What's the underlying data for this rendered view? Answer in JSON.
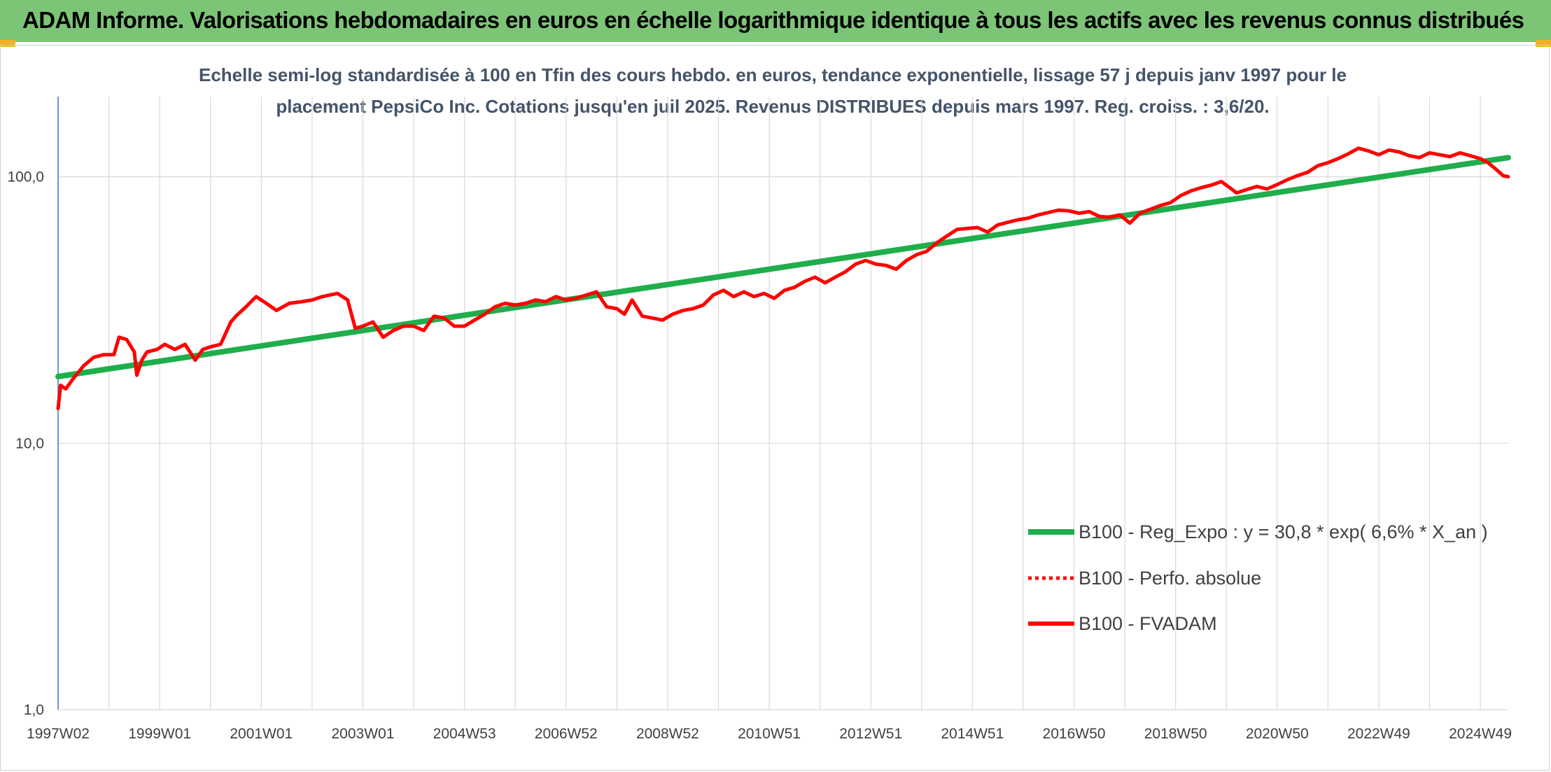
{
  "header": {
    "title": "ADAM Informe. Valorisations hebdomadaires en euros en échelle logarithmique identique à tous les actifs avec les revenus connus distribués",
    "accent_color": "#7cc576"
  },
  "chart_data": {
    "type": "line",
    "title": [
      "Echelle semi-log standardisée à 100 en Tfin des cours hebdo. en euros, tendance exponentielle, lissage 57 j depuis janv 1997 pour le",
      "placement PepsiCo Inc. Cotations jusqu'en juil 2025. Revenus DISTRIBUES depuis mars 1997. Reg. croiss. : 3,6/20."
    ],
    "y_scale": "log",
    "ylim": [
      1,
      200
    ],
    "y_ticks": [
      "1,0",
      "10,0",
      "100,0"
    ],
    "y_tick_values": [
      1,
      10,
      100
    ],
    "x_range": [
      1997.0,
      2025.55
    ],
    "x_ticks": [
      "1997W02",
      "1999W01",
      "2001W01",
      "2003W01",
      "2004W53",
      "2006W52",
      "2008W52",
      "2010W51",
      "2012W51",
      "2014W51",
      "2016W50",
      "2018W50",
      "2020W50",
      "2022W49",
      "2024W49"
    ],
    "x_tick_years": [
      1997.0,
      1999.0,
      2001.0,
      2003.0,
      2005.0,
      2007.0,
      2009.0,
      2011.0,
      2013.0,
      2015.0,
      2017.0,
      2019.0,
      2021.0,
      2023.0,
      2025.0
    ],
    "grid": true,
    "legend_position": "bottom-right",
    "series": [
      {
        "name": "B100 - Reg_Expo : y = 30,8 * exp( 6,6% *  X_an )",
        "color": "#1fae4b",
        "style": "solid",
        "x": [
          1997.0,
          2025.55
        ],
        "y": [
          17.8,
          118
        ]
      },
      {
        "name": "B100 - Perfo. absolue",
        "color": "#ff0000",
        "style": "dotted",
        "x": [],
        "y": []
      },
      {
        "name": "B100 - FVADAM",
        "color": "#ff0000",
        "style": "solid",
        "x": [
          1997.0,
          1997.05,
          1997.15,
          1997.3,
          1997.5,
          1997.7,
          1997.9,
          1998.1,
          1998.2,
          1998.35,
          1998.5,
          1998.55,
          1998.65,
          1998.75,
          1998.95,
          1999.1,
          1999.3,
          1999.5,
          1999.7,
          1999.85,
          2000.0,
          2000.2,
          2000.4,
          2000.5,
          2000.7,
          2000.9,
          2001.1,
          2001.3,
          2001.55,
          2001.8,
          2002.0,
          2002.2,
          2002.5,
          2002.7,
          2002.85,
          2003.0,
          2003.2,
          2003.4,
          2003.6,
          2003.8,
          2004.0,
          2004.2,
          2004.4,
          2004.6,
          2004.8,
          2005.0,
          2005.2,
          2005.4,
          2005.6,
          2005.8,
          2006.0,
          2006.2,
          2006.4,
          2006.6,
          2006.8,
          2007.0,
          2007.2,
          2007.4,
          2007.6,
          2007.8,
          2008.0,
          2008.15,
          2008.3,
          2008.5,
          2008.7,
          2008.9,
          2009.1,
          2009.3,
          2009.5,
          2009.7,
          2009.9,
          2010.1,
          2010.3,
          2010.5,
          2010.7,
          2010.9,
          2011.1,
          2011.3,
          2011.5,
          2011.7,
          2011.9,
          2012.1,
          2012.3,
          2012.5,
          2012.7,
          2012.9,
          2013.1,
          2013.3,
          2013.5,
          2013.7,
          2013.9,
          2014.1,
          2014.3,
          2014.5,
          2014.7,
          2014.9,
          2015.1,
          2015.3,
          2015.5,
          2015.7,
          2015.9,
          2016.1,
          2016.3,
          2016.5,
          2016.7,
          2016.9,
          2017.1,
          2017.3,
          2017.5,
          2017.7,
          2017.9,
          2018.1,
          2018.3,
          2018.5,
          2018.7,
          2018.9,
          2019.1,
          2019.3,
          2019.5,
          2019.7,
          2019.9,
          2020.1,
          2020.2,
          2020.4,
          2020.6,
          2020.8,
          2021.0,
          2021.2,
          2021.4,
          2021.6,
          2021.8,
          2022.0,
          2022.2,
          2022.4,
          2022.6,
          2022.8,
          2023.0,
          2023.2,
          2023.4,
          2023.6,
          2023.8,
          2024.0,
          2024.2,
          2024.4,
          2024.6,
          2024.8,
          2025.0,
          2025.15,
          2025.3,
          2025.45,
          2025.55
        ],
        "y": [
          13.5,
          16.5,
          16.0,
          17.5,
          19.5,
          21.0,
          21.5,
          21.5,
          25.0,
          24.5,
          22.0,
          18.0,
          20.5,
          22.0,
          22.5,
          23.5,
          22.5,
          23.5,
          20.5,
          22.5,
          23.0,
          23.5,
          28.5,
          30.0,
          32.5,
          35.5,
          33.5,
          31.5,
          33.5,
          34.0,
          34.5,
          35.5,
          36.5,
          34.5,
          27.0,
          27.5,
          28.5,
          25.0,
          26.5,
          27.5,
          27.5,
          26.5,
          30.0,
          29.5,
          27.5,
          27.5,
          29.0,
          30.5,
          32.5,
          33.5,
          33.0,
          33.5,
          34.5,
          34.0,
          35.5,
          34.5,
          35.0,
          36.0,
          37.0,
          32.5,
          32.0,
          30.5,
          34.5,
          30.0,
          29.5,
          29.0,
          30.5,
          31.5,
          32.0,
          33.0,
          36.0,
          37.5,
          35.5,
          37.0,
          35.5,
          36.5,
          35.0,
          37.5,
          38.5,
          40.5,
          42.0,
          40.0,
          42.0,
          44.0,
          47.0,
          48.5,
          47.0,
          46.5,
          45.0,
          48.5,
          51.0,
          52.5,
          56.5,
          60.0,
          63.5,
          64.0,
          64.5,
          62.0,
          66.0,
          67.5,
          69.0,
          70.0,
          72.0,
          73.5,
          75.0,
          74.5,
          73.0,
          74.0,
          71.0,
          70.5,
          72.0,
          67.0,
          73.0,
          75.5,
          78.0,
          80.0,
          85.0,
          88.5,
          91.0,
          93.0,
          96.0,
          90.0,
          87.0,
          89.5,
          92.0,
          90.0,
          93.5,
          97.5,
          101.0,
          104.0,
          110.0,
          113.0,
          117.0,
          122.0,
          128.0,
          125.0,
          121.0,
          126.0,
          124.0,
          120.0,
          118.0,
          123.0,
          121.0,
          119.0,
          123.0,
          120.0,
          117.0,
          113.0,
          107.0,
          101.0,
          100.0
        ]
      }
    ]
  }
}
